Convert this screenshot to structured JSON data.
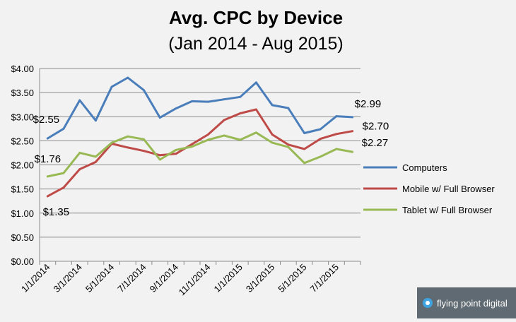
{
  "chart_data": {
    "type": "line",
    "title": "Avg. CPC by Device",
    "subtitle": "(Jan 2014 - Aug 2015)",
    "xlabel": "",
    "ylabel": "",
    "x": [
      "1/1/2014",
      "2/1/2014",
      "3/1/2014",
      "4/1/2014",
      "5/1/2014",
      "6/1/2014",
      "7/1/2014",
      "8/1/2014",
      "9/1/2014",
      "10/1/2014",
      "11/1/2014",
      "12/1/2014",
      "1/1/2015",
      "2/1/2015",
      "3/1/2015",
      "4/1/2015",
      "5/1/2015",
      "6/1/2015",
      "7/1/2015",
      "8/1/2015"
    ],
    "x_tick_labels": [
      "1/1/2014",
      "3/1/2014",
      "5/1/2014",
      "7/1/2014",
      "9/1/2014",
      "11/1/2014",
      "1/1/2015",
      "3/1/2015",
      "5/1/2015",
      "7/1/2015"
    ],
    "y_tick_labels": [
      "$0.00",
      "$0.50",
      "$1.00",
      "$1.50",
      "$2.00",
      "$2.50",
      "$3.00",
      "$3.50",
      "$4.00"
    ],
    "ylim": [
      0,
      4
    ],
    "grid": true,
    "legend_position": "right",
    "series": [
      {
        "name": "Computers",
        "color": "#4a7ebb",
        "values": [
          2.55,
          2.75,
          3.34,
          2.92,
          3.62,
          3.81,
          3.55,
          2.98,
          3.17,
          3.32,
          3.31,
          3.36,
          3.41,
          3.71,
          3.24,
          3.18,
          2.66,
          2.74,
          3.01,
          2.99
        ]
      },
      {
        "name": "Mobile w/ Full Browser",
        "color": "#be4b48",
        "values": [
          1.35,
          1.53,
          1.91,
          2.06,
          2.44,
          2.36,
          2.29,
          2.2,
          2.23,
          2.43,
          2.63,
          2.93,
          3.07,
          3.15,
          2.63,
          2.42,
          2.33,
          2.54,
          2.64,
          2.7
        ]
      },
      {
        "name": "Tablet w/ Full Browser",
        "color": "#98b954",
        "values": [
          1.76,
          1.83,
          2.25,
          2.17,
          2.46,
          2.59,
          2.53,
          2.11,
          2.31,
          2.38,
          2.52,
          2.61,
          2.52,
          2.67,
          2.46,
          2.37,
          2.04,
          2.17,
          2.33,
          2.27
        ]
      }
    ],
    "annotations": [
      "$2.55",
      "$1.76",
      "$1.35",
      "$2.99",
      "$2.70",
      "$2.27"
    ]
  },
  "branding": {
    "text": "flying point digital"
  }
}
